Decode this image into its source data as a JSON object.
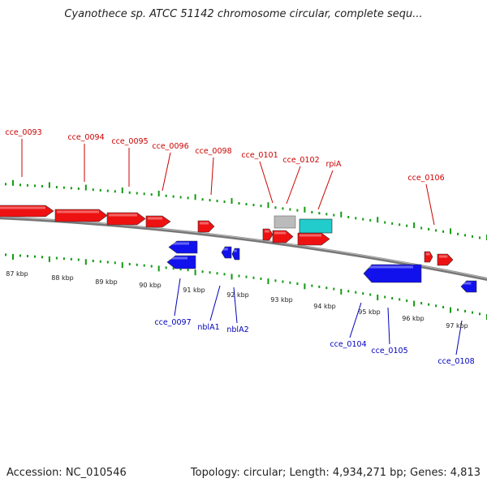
{
  "title": "Cyanothece sp. ATCC 51142 chromosome circular, complete sequ...",
  "footer": {
    "accession": "Accession: NC_010546",
    "topology": "Topology: circular; Length: 4,934,271 bp; Genes: 4,813"
  },
  "colors": {
    "forward": "#ee1111",
    "reverse": "#1111ee",
    "rna_gray": "#bbbbbb",
    "rna_cyan": "#22cccc",
    "label_forward": "#cc0000",
    "label_reverse": "#0000bb",
    "tick": "#119911",
    "backbone": "#888888"
  },
  "kbp_labels": [
    "87 kbp",
    "88 kbp",
    "89 kbp",
    "90 kbp",
    "91 kbp",
    "92 kbp",
    "93 kbp",
    "94 kbp",
    "95 kbp",
    "96 kbp",
    "97 kbp"
  ],
  "forward_labels": [
    "cce_0093",
    "cce_0094",
    "cce_0095",
    "cce_0096",
    "cce_0098",
    "cce_0101",
    "cce_0102",
    "rpiA",
    "cce_0106"
  ],
  "reverse_labels": [
    "cce_0097",
    "nblA1",
    "nblA2",
    "cce_0104",
    "cce_0105",
    "cce_0108"
  ]
}
